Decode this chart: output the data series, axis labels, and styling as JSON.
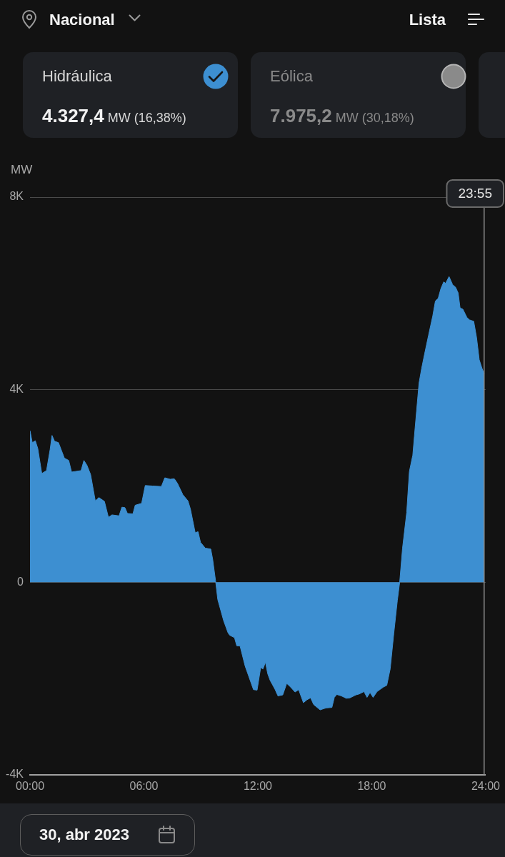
{
  "chart_data": {
    "type": "area",
    "ylabel": "MW",
    "x": [
      0,
      0.12,
      0.28,
      0.41,
      0.62,
      0.87,
      1.06,
      1.16,
      1.29,
      1.5,
      1.81,
      2.04,
      2.19,
      2.69,
      2.84,
      3.0,
      3.19,
      3.44,
      3.63,
      3.92,
      4.13,
      4.32,
      4.69,
      4.84,
      5.0,
      5.13,
      5.42,
      5.54,
      5.88,
      6.07,
      6.45,
      6.92,
      7.1,
      7.38,
      7.6,
      7.76,
      8.05,
      8.32,
      8.45,
      8.7,
      8.85,
      8.98,
      9.23,
      9.52,
      9.62,
      9.77,
      9.89,
      10.2,
      10.43,
      10.52,
      10.77,
      10.89,
      11.06,
      11.33,
      11.77,
      11.96,
      12.15,
      12.27,
      12.4,
      12.52,
      12.65,
      12.9,
      13.06,
      13.31,
      13.52,
      13.71,
      13.96,
      14.15,
      14.4,
      14.59,
      14.78,
      14.94,
      15.28,
      15.59,
      15.9,
      16.03,
      16.16,
      16.4,
      16.66,
      16.85,
      17.16,
      17.34,
      17.59,
      17.75,
      17.91,
      18.07,
      18.28,
      18.6,
      18.79,
      18.97,
      19.16,
      19.35,
      19.47,
      19.62,
      19.84,
      19.98,
      20.16,
      20.27,
      20.42,
      20.49,
      20.63,
      20.78,
      20.99,
      21.21,
      21.35,
      21.5,
      21.64,
      21.79,
      21.89,
      22.07,
      22.26,
      22.41,
      22.55,
      22.65,
      22.8,
      23.01,
      23.15,
      23.37,
      23.52,
      23.66,
      23.8,
      23.9167
    ],
    "series": [
      {
        "color": "#3d8fd1",
        "values": [
          3150,
          2900,
          2940,
          2780,
          2260,
          2320,
          2760,
          3050,
          2930,
          2900,
          2580,
          2530,
          2290,
          2320,
          2530,
          2430,
          2240,
          1690,
          1760,
          1680,
          1350,
          1400,
          1380,
          1560,
          1550,
          1430,
          1420,
          1600,
          1640,
          2010,
          2000,
          1990,
          2170,
          2140,
          2150,
          2060,
          1820,
          1690,
          1520,
          1030,
          1050,
          830,
          710,
          690,
          480,
          40,
          -360,
          -800,
          -1050,
          -1100,
          -1150,
          -1320,
          -1320,
          -1740,
          -2230,
          -2240,
          -1770,
          -1800,
          -1660,
          -1900,
          -2040,
          -2220,
          -2360,
          -2340,
          -2100,
          -2170,
          -2280,
          -2230,
          -2500,
          -2440,
          -2400,
          -2540,
          -2650,
          -2610,
          -2600,
          -2390,
          -2330,
          -2360,
          -2410,
          -2400,
          -2340,
          -2320,
          -2270,
          -2390,
          -2290,
          -2390,
          -2270,
          -2180,
          -2140,
          -1800,
          -1060,
          -370,
          0,
          710,
          1450,
          2300,
          2640,
          3150,
          3830,
          4140,
          4450,
          4740,
          5130,
          5530,
          5840,
          5900,
          6100,
          6240,
          6210,
          6350,
          6180,
          6130,
          6010,
          5700,
          5670,
          5500,
          5450,
          5420,
          5080,
          4620,
          4450,
          4330
        ]
      }
    ],
    "xlim": [
      0,
      24
    ],
    "xticks": [
      {
        "value": 0,
        "label": "00:00"
      },
      {
        "value": 6,
        "label": "06:00"
      },
      {
        "value": 12,
        "label": "12:00"
      },
      {
        "value": 18,
        "label": "18:00"
      },
      {
        "value": 24,
        "label": "24:00"
      }
    ],
    "ylim": [
      -4000,
      8000
    ],
    "yticks": [
      {
        "value": -4000,
        "label": "-4K"
      },
      0,
      {
        "value": 4000,
        "label": "4K"
      },
      {
        "value": 8000,
        "label": "8K"
      }
    ],
    "grid": "y",
    "ref_lines": [
      {
        "axis": "x",
        "value": 23.9167
      }
    ],
    "annotations": [
      "Nacional",
      "Lista",
      "Hidráulica",
      "4.327,4 MW (16,38%)",
      "Eólica",
      "7.975,2 MW (30,18%)",
      "30, abr 2023",
      "23:55"
    ]
  }
}
